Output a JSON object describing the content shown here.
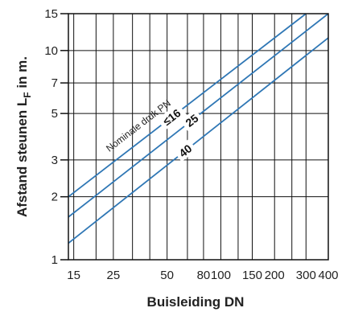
{
  "chart_data": {
    "type": "line",
    "title": "",
    "xlabel": "Buisleiding DN",
    "ylabel_main": "Afstand steunen L",
    "ylabel_sub": "F",
    "ylabel_tail": " in m.",
    "xscale": "log",
    "yscale": "log",
    "xlim": [
      14,
      400
    ],
    "ylim": [
      1,
      15
    ],
    "x_ticks": [
      15,
      25,
      50,
      80,
      100,
      150,
      200,
      300,
      400
    ],
    "x_tick_labels": [
      "15",
      "25",
      "50",
      "80",
      "100",
      "150",
      "200",
      "300",
      "400"
    ],
    "y_ticks": [
      1,
      2,
      3,
      5,
      7,
      10,
      15
    ],
    "y_tick_labels": [
      "1",
      "2",
      "3",
      "5",
      "7",
      "10",
      "15"
    ],
    "x_grid": [
      15,
      20,
      25,
      32,
      40,
      50,
      65,
      80,
      100,
      125,
      150,
      200,
      250,
      300,
      400
    ],
    "y_grid": [
      1,
      2,
      3,
      5,
      7,
      10,
      15
    ],
    "grid": true,
    "line_color": "#2f77b5",
    "annotation": "Nominale druk PN",
    "series": [
      {
        "name": "≤16",
        "x": [
          14,
          300
        ],
        "y": [
          2.0,
          15
        ]
      },
      {
        "name": "25",
        "x": [
          14,
          400
        ],
        "y": [
          1.6,
          15
        ]
      },
      {
        "name": "40",
        "x": [
          14,
          400
        ],
        "y": [
          1.2,
          11.5
        ]
      }
    ]
  }
}
